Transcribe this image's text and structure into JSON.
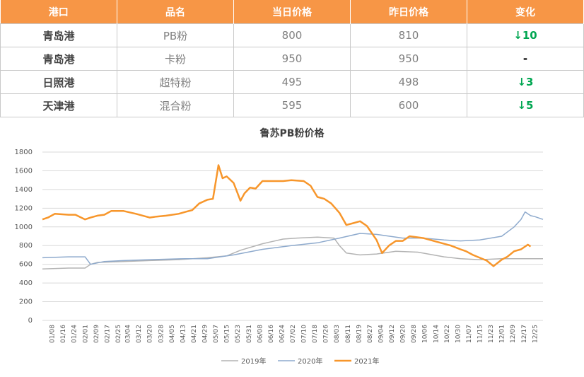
{
  "table": {
    "headers": [
      "港口",
      "品名",
      "当日价格",
      "昨日价格",
      "变化"
    ],
    "rows": [
      {
        "port": "青岛港",
        "product": "PB粉",
        "today": "800",
        "yesterday": "810",
        "change": "↓10"
      },
      {
        "port": "青岛港",
        "product": "卡粉",
        "today": "950",
        "yesterday": "950",
        "change": "-"
      },
      {
        "port": "日照港",
        "product": "超特粉",
        "today": "495",
        "yesterday": "498",
        "change": "↓3"
      },
      {
        "port": "天津港",
        "product": "混合粉",
        "today": "595",
        "yesterday": "600",
        "change": "↓5"
      }
    ]
  },
  "colors": {
    "header_bg": "#f79646",
    "down": "#00a651",
    "s2019": "#b3b3b3",
    "s2020": "#8eaacd",
    "s2021": "#f7962b"
  },
  "chart_data": {
    "type": "line",
    "title": "鲁苏PB粉价格",
    "xlabel": "",
    "ylabel": "",
    "ylim": [
      0,
      1800
    ],
    "yticks": [
      0,
      200,
      400,
      600,
      800,
      1000,
      1200,
      1400,
      1600,
      1800
    ],
    "grid": "horizontal",
    "legend": "bottom",
    "xticks": [
      "01/08",
      "01/16",
      "01/24",
      "02/01",
      "02/09",
      "02/17",
      "02/25",
      "03/04",
      "03/12",
      "03/20",
      "03/28",
      "04/05",
      "04/13",
      "04/21",
      "04/29",
      "05/07",
      "05/15",
      "05/23",
      "05/31",
      "06/08",
      "06/16",
      "06/24",
      "07/02",
      "07/10",
      "07/18",
      "07/26",
      "08/03",
      "08/11",
      "08/19",
      "08/27",
      "09/04",
      "09/12",
      "09/20",
      "09/28",
      "10/06",
      "10/14",
      "10/22",
      "10/30",
      "11/07",
      "11/15",
      "11/23",
      "12/01",
      "12/09",
      "12/17",
      "12/25"
    ],
    "series": [
      {
        "name": "2019年",
        "x": [
          "01/01",
          "01/20",
          "02/01",
          "02/05",
          "02/10",
          "03/01",
          "03/20",
          "04/10",
          "05/01",
          "05/15",
          "05/25",
          "06/10",
          "06/25",
          "07/05",
          "07/20",
          "08/01",
          "08/05",
          "08/10",
          "08/20",
          "09/01",
          "09/15",
          "10/01",
          "10/20",
          "11/01",
          "11/15",
          "12/01",
          "12/15",
          "12/31"
        ],
        "values": [
          550,
          560,
          560,
          600,
          620,
          630,
          640,
          650,
          670,
          690,
          750,
          820,
          870,
          880,
          890,
          880,
          800,
          720,
          700,
          710,
          740,
          730,
          680,
          660,
          650,
          660,
          660,
          660
        ]
      },
      {
        "name": "2020年",
        "x": [
          "01/01",
          "01/20",
          "02/01",
          "02/05",
          "02/15",
          "03/01",
          "03/20",
          "04/15",
          "05/01",
          "05/20",
          "06/10",
          "07/01",
          "07/20",
          "08/05",
          "08/20",
          "09/01",
          "09/20",
          "10/05",
          "10/20",
          "11/01",
          "11/15",
          "12/01",
          "12/10",
          "12/15",
          "12/18",
          "12/22",
          "12/25",
          "12/31"
        ],
        "values": [
          670,
          680,
          680,
          600,
          630,
          640,
          650,
          660,
          660,
          700,
          760,
          800,
          830,
          880,
          930,
          920,
          880,
          880,
          860,
          850,
          860,
          900,
          1000,
          1080,
          1160,
          1120,
          1110,
          1080
        ]
      },
      {
        "name": "2021年",
        "x": [
          "01/01",
          "01/05",
          "01/10",
          "01/20",
          "01/25",
          "02/01",
          "02/05",
          "02/10",
          "02/15",
          "02/20",
          "03/01",
          "03/10",
          "03/20",
          "03/25",
          "04/01",
          "04/10",
          "04/15",
          "04/20",
          "04/25",
          "05/01",
          "05/05",
          "05/09",
          "05/12",
          "05/15",
          "05/20",
          "05/25",
          "05/28",
          "06/01",
          "06/05",
          "06/10",
          "06/15",
          "06/25",
          "07/01",
          "07/10",
          "07/15",
          "07/20",
          "07/25",
          "07/30",
          "08/05",
          "08/10",
          "08/15",
          "08/20",
          "08/25",
          "09/01",
          "09/05",
          "09/10",
          "09/15",
          "09/20",
          "09/25",
          "10/05",
          "10/15",
          "10/25",
          "11/01",
          "11/05",
          "11/10",
          "11/15",
          "11/20",
          "11/25",
          "12/01",
          "12/05",
          "12/10",
          "12/15",
          "12/20",
          "12/22"
        ],
        "values": [
          1080,
          1100,
          1140,
          1130,
          1130,
          1080,
          1100,
          1120,
          1130,
          1170,
          1170,
          1140,
          1100,
          1110,
          1120,
          1140,
          1160,
          1180,
          1250,
          1290,
          1300,
          1660,
          1520,
          1540,
          1470,
          1280,
          1360,
          1420,
          1410,
          1490,
          1490,
          1490,
          1500,
          1490,
          1440,
          1320,
          1300,
          1250,
          1150,
          1020,
          1040,
          1060,
          1010,
          860,
          720,
          800,
          850,
          850,
          900,
          880,
          840,
          800,
          760,
          740,
          700,
          670,
          640,
          580,
          650,
          680,
          740,
          760,
          810,
          790
        ]
      }
    ]
  }
}
